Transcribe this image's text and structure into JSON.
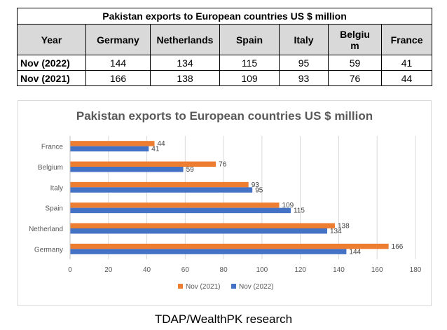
{
  "table": {
    "title": "Pakistan exports to European countries US $ million",
    "headers": [
      "Year",
      "Germany",
      "Netherlands",
      "Spain",
      "Italy",
      "Belgium",
      "France"
    ],
    "rows": [
      {
        "year": "Nov (2022)",
        "values": [
          "144",
          "134",
          "115",
          "95",
          "59",
          "41"
        ]
      },
      {
        "year": "Nov (2021)",
        "values": [
          "166",
          "138",
          "109",
          "93",
          "76",
          "44"
        ]
      }
    ]
  },
  "chart_data": {
    "type": "bar",
    "orientation": "horizontal",
    "title": "Pakistan exports to European countries US $ million",
    "categories": [
      "Germany",
      "Netherland",
      "Spain",
      "Italy",
      "Belgium",
      "France"
    ],
    "series": [
      {
        "name": "Nov (2021)",
        "values": [
          166,
          138,
          109,
          93,
          76,
          44
        ],
        "color": "#ed7d31"
      },
      {
        "name": "Nov (2022)",
        "values": [
          144,
          134,
          115,
          95,
          59,
          41
        ],
        "color": "#4472c4"
      }
    ],
    "xlim": [
      0,
      180
    ],
    "xticks": [
      0,
      20,
      40,
      60,
      80,
      100,
      120,
      140,
      160,
      180
    ],
    "grid": true,
    "legend_position": "bottom",
    "data_labels": true
  },
  "footer": "TDAP/WealthPK research"
}
